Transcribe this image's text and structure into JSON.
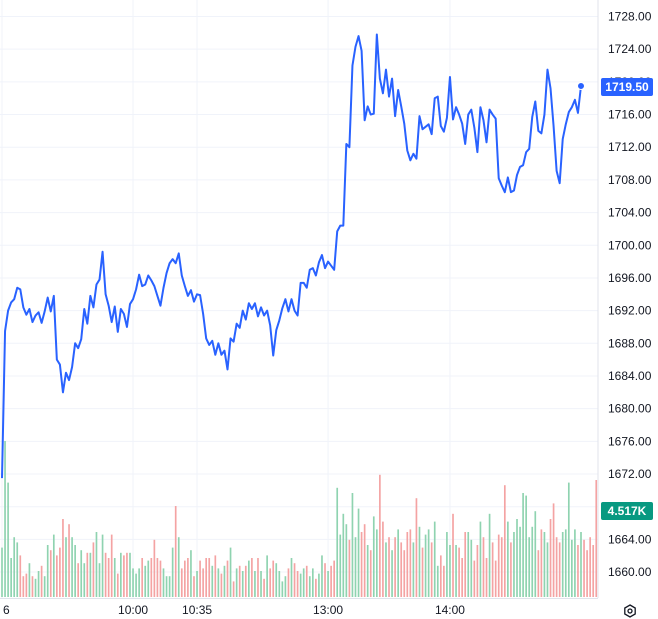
{
  "chart_data": {
    "type": "line",
    "title": "",
    "xlabel": "",
    "ylabel": "",
    "ylim": [
      1656,
      1730
    ],
    "y_ticks": [
      "1728.00",
      "1724.00",
      "1720.00",
      "1716.00",
      "1712.00",
      "1708.00",
      "1704.00",
      "1700.00",
      "1696.00",
      "1692.00",
      "1688.00",
      "1684.00",
      "1680.00",
      "1676.00",
      "1672.00",
      "1668.00",
      "1664.00",
      "1660.00"
    ],
    "x_ticks": [
      "6",
      "10:00",
      "10:35",
      "13:00",
      "14:00"
    ],
    "x_tick_index": [
      0,
      43,
      64,
      107,
      147
    ],
    "grid": true,
    "series": [
      {
        "color": "#2962ff",
        "values": [
          1671.5,
          1689.5,
          1692.0,
          1693.0,
          1693.4,
          1694.8,
          1694.6,
          1692.4,
          1691.5,
          1692.2,
          1690.6,
          1691.4,
          1691.8,
          1690.5,
          1691.9,
          1693.6,
          1691.9,
          1693.8,
          1686.0,
          1685.4,
          1682.0,
          1684.4,
          1683.5,
          1685.1,
          1688.0,
          1687.4,
          1688.5,
          1692.2,
          1690.4,
          1693.8,
          1692.4,
          1695.2,
          1695.8,
          1699.2,
          1694.0,
          1692.6,
          1690.6,
          1692.5,
          1689.4,
          1692.2,
          1691.6,
          1690.0,
          1692.8,
          1693.4,
          1694.6,
          1696.4,
          1695.0,
          1695.2,
          1696.3,
          1695.7,
          1695.0,
          1693.8,
          1692.6,
          1694.8,
          1696.6,
          1697.8,
          1698.3,
          1697.8,
          1699.0,
          1696.3,
          1695.0,
          1693.8,
          1694.5,
          1693.1,
          1694.0,
          1693.9,
          1691.6,
          1688.6,
          1687.8,
          1688.3,
          1686.6,
          1688.0,
          1686.6,
          1687.1,
          1684.8,
          1688.6,
          1688.2,
          1690.4,
          1689.9,
          1692.0,
          1690.9,
          1692.9,
          1692.2,
          1692.9,
          1691.3,
          1692.4,
          1691.4,
          1692.0,
          1690.2,
          1686.5,
          1689.6,
          1690.8,
          1692.3,
          1693.4,
          1691.9,
          1693.4,
          1692.0,
          1691.4,
          1695.4,
          1695.4,
          1694.8,
          1697.0,
          1697.2,
          1696.3,
          1697.9,
          1698.8,
          1697.2,
          1698.0,
          1697.5,
          1697.0,
          1701.7,
          1702.4,
          1702.4,
          1712.4,
          1712.0,
          1722.0,
          1724.3,
          1725.6,
          1723.8,
          1715.3,
          1717.0,
          1716.0,
          1716.1,
          1725.8,
          1720.4,
          1718.6,
          1721.5,
          1718.2,
          1720.4,
          1715.8,
          1719.0,
          1717.0,
          1714.9,
          1711.6,
          1710.4,
          1711.2,
          1710.6,
          1715.8,
          1714.2,
          1714.5,
          1714.8,
          1713.6,
          1718.0,
          1718.2,
          1714.6,
          1713.9,
          1715.6,
          1720.6,
          1715.4,
          1716.9,
          1716.0,
          1714.9,
          1712.4,
          1716.0,
          1716.6,
          1714.4,
          1711.4,
          1716.9,
          1715.3,
          1712.6,
          1716.6,
          1716.0,
          1715.5,
          1708.2,
          1707.3,
          1706.5,
          1708.3,
          1706.5,
          1706.7,
          1708.6,
          1709.6,
          1709.8,
          1711.4,
          1711.8,
          1715.7,
          1717.6,
          1714.0,
          1713.7,
          1716.0,
          1721.5,
          1719.2,
          1714.6,
          1709.1,
          1707.6,
          1713.0,
          1714.8,
          1716.3,
          1716.9,
          1717.8,
          1716.2,
          1719.5
        ],
        "last_value": "1719.50",
        "last_color": "#2962ff"
      }
    ],
    "volume": {
      "last_label": "4.517K",
      "last_color": "#089981",
      "up_color": "#8fd3b0",
      "down_color": "#f4a3a3",
      "values": [
        1.9,
        6.0,
        4.4,
        1.5,
        2.3,
        2.1,
        1.6,
        0.8,
        0.9,
        1.3,
        0.8,
        0.7,
        1.0,
        1.2,
        0.8,
        2.0,
        1.8,
        2.4,
        1.6,
        1.9,
        3.0,
        2.3,
        2.8,
        2.3,
        2.0,
        1.3,
        1.8,
        1.3,
        1.7,
        1.7,
        2.1,
        2.5,
        1.3,
        2.4,
        1.7,
        1.5,
        2.4,
        1.5,
        0.9,
        1.7,
        1.6,
        1.7,
        1.7,
        1.1,
        0.9,
        1.1,
        1.5,
        1.2,
        1.4,
        1.5,
        2.2,
        1.5,
        1.4,
        1.1,
        0.8,
        0.8,
        1.9,
        3.5,
        2.3,
        1.1,
        1.4,
        1.5,
        1.8,
        0.8,
        1.0,
        1.4,
        1.1,
        1.5,
        1.5,
        1.2,
        1.6,
        1.1,
        0.9,
        1.2,
        1.4,
        1.9,
        0.6,
        1.1,
        1.2,
        1.0,
        1.2,
        1.4,
        1.5,
        1.0,
        1.5,
        1.0,
        0.7,
        1.6,
        1.1,
        1.4,
        1.3,
        1.0,
        0.6,
        0.8,
        1.1,
        1.5,
        1.3,
        1.0,
        0.9,
        1.1,
        1.2,
        0.8,
        1.1,
        0.7,
        0.9,
        1.6,
        1.3,
        1.0,
        1.2,
        1.4,
        4.2,
        2.4,
        3.2,
        2.8,
        2.2,
        4.0,
        2.3,
        3.4,
        2.5,
        2.8,
        2.0,
        1.8,
        3.1,
        2.6,
        4.7,
        2.9,
        2.1,
        2.3,
        1.8,
        2.3,
        2.6,
        2.1,
        1.8,
        2.5,
        2.6,
        2.1,
        3.8,
        2.7,
        1.9,
        2.4,
        2.6,
        2.1,
        2.9,
        1.2,
        1.6,
        1.2,
        2.5,
        2.0,
        3.2,
        2.0,
        1.9,
        1.5,
        2.5,
        2.5,
        2.2,
        1.4,
        2.0,
        2.9,
        2.3,
        1.5,
        3.2,
        2.1,
        1.4,
        2.4,
        2.3,
        4.3,
        2.9,
        2.1,
        2.5,
        3.0,
        2.7,
        4.0,
        3.9,
        2.3,
        2.7,
        3.3,
        1.8,
        2.6,
        2.5,
        2.1,
        3.0,
        3.6,
        2.3,
        2.1,
        2.5,
        2.6,
        4.4,
        2.2,
        2.6,
        2.0,
        2.5,
        2.2,
        1.8,
        2.3,
        2.0,
        4.5
      ]
    }
  }
}
